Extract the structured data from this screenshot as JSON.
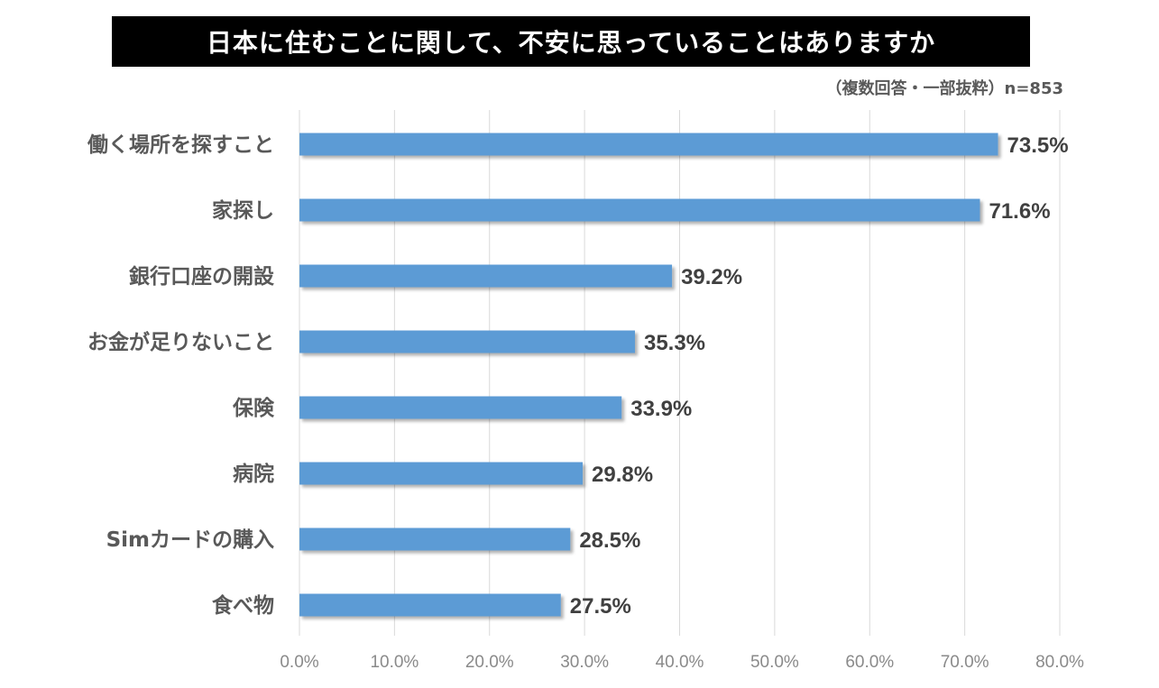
{
  "title": "日本に住むことに関して、不安に思っていることはありますか",
  "subtitle": "（複数回答・一部抜粋）n=853",
  "colors": {
    "bar": "#5b9bd5",
    "title_bg": "#000000",
    "title_text": "#ffffff",
    "label_text": "#595959",
    "value_text": "#404040",
    "grid": "#d9d9d9",
    "tick_text": "#8a8a8a"
  },
  "chart_data": {
    "type": "bar",
    "orientation": "horizontal",
    "categories": [
      "働く場所を探すこと",
      "家探し",
      "銀行口座の開設",
      "お金が足りないこと",
      "保険",
      "病院",
      "Simカードの購入",
      "食べ物"
    ],
    "values": [
      73.5,
      71.6,
      39.2,
      35.3,
      33.9,
      29.8,
      28.5,
      27.5
    ],
    "value_labels": [
      "73.5%",
      "71.6%",
      "39.2%",
      "35.3%",
      "33.9%",
      "29.8%",
      "28.5%",
      "27.5%"
    ],
    "xlim": [
      0,
      80
    ],
    "x_ticks": [
      0,
      10,
      20,
      30,
      40,
      50,
      60,
      70,
      80
    ],
    "x_tick_labels": [
      "0.0%",
      "10.0%",
      "20.0%",
      "30.0%",
      "40.0%",
      "50.0%",
      "60.0%",
      "70.0%",
      "80.0%"
    ],
    "grid": true,
    "legend": "none"
  }
}
